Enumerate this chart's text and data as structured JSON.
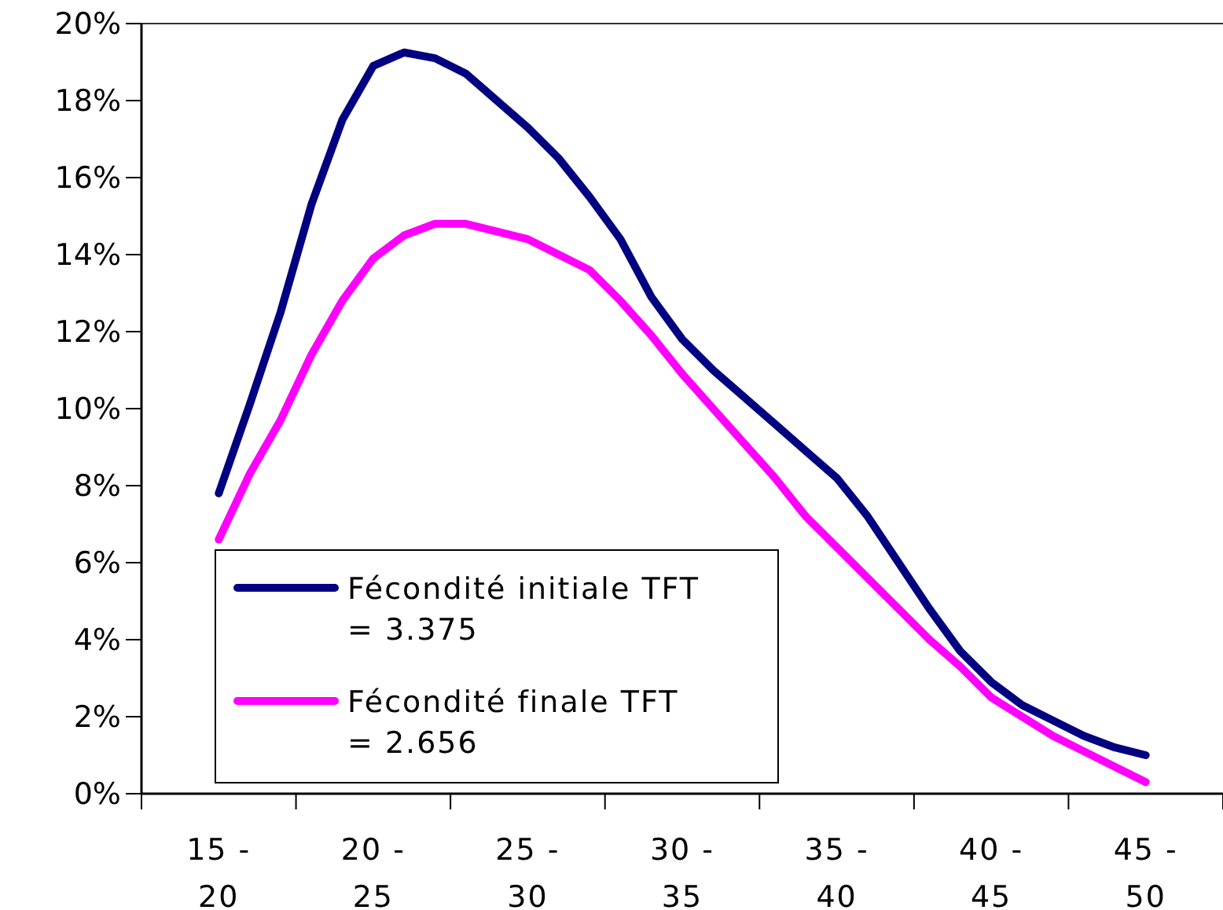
{
  "chart_data": {
    "type": "line",
    "categories": [
      null,
      null,
      "15 - 20",
      null,
      null,
      null,
      null,
      "20 - 25",
      null,
      null,
      null,
      null,
      "25 - 30",
      null,
      null,
      null,
      null,
      "30 - 35",
      null,
      null,
      null,
      null,
      "35 - 40",
      null,
      null,
      null,
      null,
      "40 - 45",
      null,
      null,
      null,
      null,
      "45 - 50",
      null,
      null
    ],
    "series": [
      {
        "name": "Fécondité initiale TFT = 3.375",
        "color": "#000080",
        "values": [
          null,
          null,
          7.8,
          10.1,
          12.5,
          15.3,
          17.5,
          18.9,
          19.25,
          19.1,
          18.7,
          18.0,
          17.3,
          16.5,
          15.5,
          14.4,
          12.9,
          11.8,
          11.0,
          10.3,
          9.6,
          8.9,
          8.2,
          7.2,
          6.0,
          4.8,
          3.7,
          2.9,
          2.3,
          1.9,
          1.5,
          1.2,
          1.0,
          null,
          null
        ]
      },
      {
        "name": "Fécondité finale TFT = 2.656",
        "color": "#ff00ff",
        "values": [
          null,
          null,
          6.6,
          8.3,
          9.7,
          11.4,
          12.8,
          13.9,
          14.5,
          14.8,
          14.8,
          14.6,
          14.4,
          14.0,
          13.6,
          12.8,
          11.9,
          10.9,
          10.0,
          9.1,
          8.2,
          7.2,
          6.4,
          5.6,
          4.8,
          4.0,
          3.3,
          2.5,
          2.0,
          1.5,
          1.1,
          0.7,
          0.3,
          null,
          null
        ]
      }
    ],
    "ylim": [
      0,
      20
    ],
    "yticks": [
      {
        "value": 0,
        "label": "0%"
      },
      {
        "value": 2,
        "label": "2%"
      },
      {
        "value": 4,
        "label": "4%"
      },
      {
        "value": 6,
        "label": "6%"
      },
      {
        "value": 8,
        "label": "8%"
      },
      {
        "value": 10,
        "label": "10%"
      },
      {
        "value": 12,
        "label": "12%"
      },
      {
        "value": 14,
        "label": "14%"
      },
      {
        "value": 16,
        "label": "16%"
      },
      {
        "value": 18,
        "label": "18%"
      },
      {
        "value": 20,
        "label": "20%"
      }
    ],
    "grid": false,
    "legend": "bottom left",
    "line_style": "solid",
    "marker": "none"
  }
}
